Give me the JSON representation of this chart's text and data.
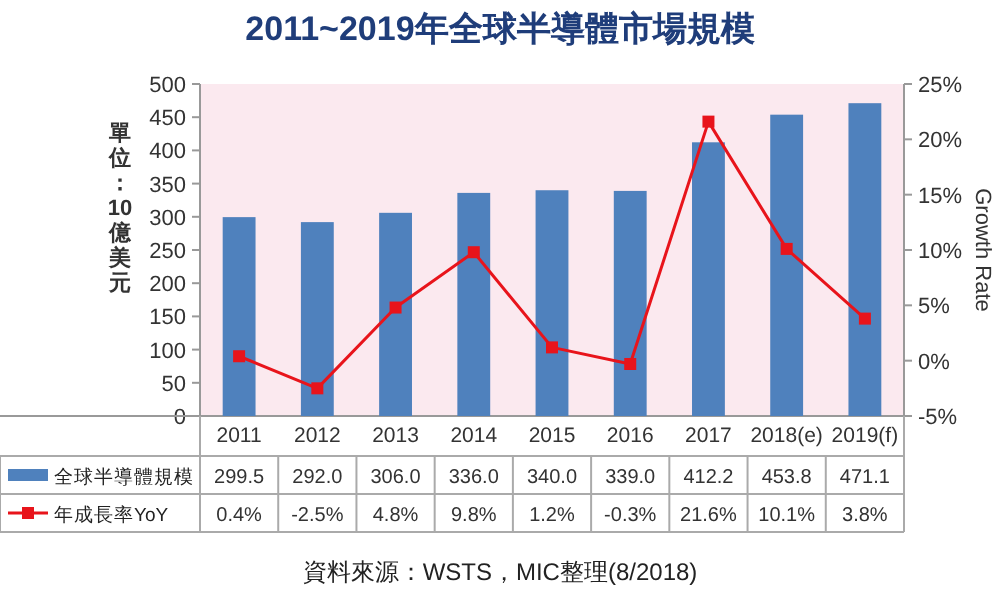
{
  "chart_data": {
    "type": "bar",
    "title": "2011~2019年全球半導體市場規模",
    "ylabel": "單位：10億美元",
    "y2label": "Growth Rate",
    "categories": [
      "2011",
      "2012",
      "2013",
      "2014",
      "2015",
      "2016",
      "2017",
      "2018(e)",
      "2019(f)"
    ],
    "series": [
      {
        "name": "全球半導體規模",
        "color": "#4f81bd",
        "values": [
          299.5,
          292.0,
          306.0,
          336.0,
          340.0,
          339.0,
          412.2,
          453.8,
          471.1
        ],
        "value_labels": [
          "299.5",
          "292.0",
          "306.0",
          "336.0",
          "340.0",
          "339.0",
          "412.2",
          "453.8",
          "471.1"
        ]
      },
      {
        "name": "年成長率YoY",
        "type": "line",
        "axis": "y2",
        "color": "#e8141b",
        "marker": "square",
        "values": [
          0.4,
          -2.5,
          4.8,
          9.8,
          1.2,
          -0.3,
          21.6,
          10.1,
          3.8
        ],
        "value_labels": [
          "0.4%",
          "-2.5%",
          "4.8%",
          "9.8%",
          "1.2%",
          "-0.3%",
          "21.6%",
          "10.1%",
          "3.8%"
        ]
      }
    ],
    "ylim": [
      0,
      500
    ],
    "yticks": [
      0,
      50,
      100,
      150,
      200,
      250,
      300,
      350,
      400,
      450,
      500
    ],
    "y2lim": [
      -5,
      25
    ],
    "y2ticks": [
      {
        "value": -5,
        "label": "-5%"
      },
      {
        "value": 0,
        "label": "0%"
      },
      {
        "value": 5,
        "label": "5%"
      },
      {
        "value": 10,
        "label": "10%"
      },
      {
        "value": 15,
        "label": "15%"
      },
      {
        "value": 20,
        "label": "20%"
      },
      {
        "value": 25,
        "label": "25%"
      }
    ],
    "legend": "bottom",
    "annotations": [
      "資料來源：WSTS，MIC整理(8/2018)"
    ]
  }
}
